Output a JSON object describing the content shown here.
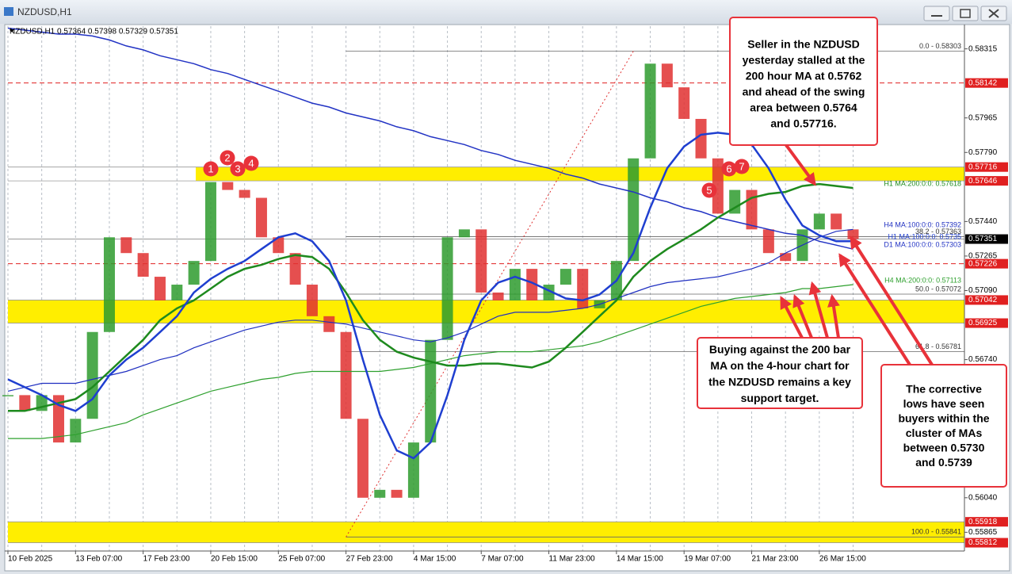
{
  "window_title": "NZDUSD,H1",
  "chart_data": {
    "type": "candlestick",
    "header": "NZDUSD,H1  0.57364 0.57398 0.57329 0.57351",
    "categories": [
      "10 Feb 2025",
      null,
      null,
      null,
      "13 Feb 07:00",
      null,
      null,
      null,
      "17 Feb 23:00",
      null,
      null,
      null,
      "20 Feb 15:00",
      null,
      null,
      null,
      "25 Feb 07:00",
      null,
      null,
      null,
      "27 Feb 23:00",
      null,
      null,
      null,
      "4 Mar 15:00",
      null,
      null,
      null,
      "7 Mar 07:00",
      null,
      null,
      null,
      "11 Mar 23:00",
      null,
      null,
      null,
      "14 Mar 15:00",
      null,
      null,
      null,
      "19 Mar 07:00",
      null,
      null,
      null,
      "21 Mar 23:00",
      null,
      null,
      null,
      "26 Mar 15:00",
      null,
      null
    ],
    "price": {
      "up_color": "#2e9b2e",
      "down_color": "#e03030",
      "values": [
        0.5656,
        0.5648,
        0.5656,
        0.5632,
        0.5644,
        0.5688,
        0.5736,
        0.5728,
        0.5716,
        0.5704,
        0.5712,
        0.5724,
        0.5764,
        0.576,
        0.5756,
        0.5736,
        0.5728,
        0.5712,
        0.5696,
        0.5688,
        0.5644,
        0.5604,
        0.5608,
        0.5604,
        0.5632,
        0.5684,
        0.5736,
        0.574,
        0.5708,
        0.5704,
        0.572,
        0.5704,
        0.5712,
        0.572,
        0.57,
        0.5704,
        0.5724,
        0.5776,
        0.5824,
        0.5812,
        0.5796,
        0.5776,
        0.5748,
        0.576,
        0.574,
        0.5728,
        0.5724,
        0.574,
        0.5748,
        0.574,
        0.57351
      ]
    },
    "series": [
      {
        "name": "D1 MA:100:0:0: 0.57303",
        "color": "#2233c4",
        "width": 1.5,
        "values": [
          0.5842,
          0.5841,
          0.584,
          0.5839,
          0.5839,
          0.5838,
          0.5836,
          0.5833,
          0.5831,
          0.5828,
          0.5826,
          0.5824,
          0.5821,
          0.5819,
          0.5816,
          0.5813,
          0.581,
          0.5807,
          0.5804,
          0.5802,
          0.5799,
          0.5797,
          0.5795,
          0.5792,
          0.579,
          0.5787,
          0.5785,
          0.5783,
          0.578,
          0.5778,
          0.5775,
          0.5773,
          0.5771,
          0.5768,
          0.5766,
          0.5763,
          0.5761,
          0.5759,
          0.5756,
          0.5754,
          0.5751,
          0.5749,
          0.5746,
          0.5744,
          0.5742,
          0.574,
          0.5738,
          0.5737,
          0.5734,
          0.5732,
          0.573
        ]
      },
      {
        "name": "H4 MA:200:0:0: 0.57113",
        "color": "#2ea02e",
        "width": 1.2,
        "values": [
          0.5634,
          0.5634,
          0.5634,
          0.5635,
          0.5636,
          0.5638,
          0.564,
          0.5642,
          0.5646,
          0.5649,
          0.5652,
          0.5655,
          0.5658,
          0.566,
          0.5662,
          0.5664,
          0.5665,
          0.5667,
          0.5668,
          0.5668,
          0.5668,
          0.5668,
          0.5668,
          0.5669,
          0.567,
          0.5672,
          0.5674,
          0.5676,
          0.5677,
          0.5678,
          0.5678,
          0.5678,
          0.5679,
          0.568,
          0.5681,
          0.5683,
          0.5686,
          0.5689,
          0.5692,
          0.5695,
          0.5698,
          0.5701,
          0.5703,
          0.5705,
          0.5706,
          0.5707,
          0.5708,
          0.571,
          0.571,
          0.5711,
          0.5712
        ]
      },
      {
        "name": "H4 MA:100:0:0: 0.57392",
        "color": "#1f2fc0",
        "width": 1.2,
        "values": [
          0.5658,
          0.566,
          0.5662,
          0.5662,
          0.5662,
          0.5664,
          0.5666,
          0.5668,
          0.5671,
          0.5674,
          0.5676,
          0.568,
          0.5683,
          0.5686,
          0.5689,
          0.5691,
          0.5693,
          0.5694,
          0.5694,
          0.5693,
          0.5692,
          0.569,
          0.5688,
          0.5686,
          0.5684,
          0.5683,
          0.5685,
          0.5688,
          0.5692,
          0.5696,
          0.5698,
          0.5698,
          0.5698,
          0.5699,
          0.57,
          0.5702,
          0.5705,
          0.5708,
          0.5711,
          0.5713,
          0.5714,
          0.5715,
          0.5716,
          0.5718,
          0.572,
          0.5723,
          0.5728,
          0.5732,
          0.5736,
          0.5739,
          0.574
        ]
      },
      {
        "name": "H1 MA:200:0:0: 0.57618",
        "color": "#1e8a1e",
        "width": 2.5,
        "values": [
          0.5648,
          0.5648,
          0.565,
          0.5652,
          0.5654,
          0.566,
          0.5668,
          0.5676,
          0.5684,
          0.5694,
          0.57,
          0.5704,
          0.571,
          0.5716,
          0.572,
          0.5722,
          0.5725,
          0.5727,
          0.5726,
          0.572,
          0.5708,
          0.5694,
          0.5684,
          0.5678,
          0.5675,
          0.5673,
          0.5671,
          0.5671,
          0.5672,
          0.5672,
          0.5671,
          0.567,
          0.5673,
          0.568,
          0.5688,
          0.5696,
          0.5704,
          0.5716,
          0.5724,
          0.573,
          0.5735,
          0.574,
          0.5746,
          0.5751,
          0.5756,
          0.5758,
          0.5759,
          0.5762,
          0.5763,
          0.5762,
          0.5761
        ]
      },
      {
        "name": "H1 MA:100:0:0: 0.5735",
        "color": "#1f3fd0",
        "width": 2.5,
        "values": [
          0.5664,
          0.566,
          0.5656,
          0.5651,
          0.5648,
          0.5654,
          0.5666,
          0.5674,
          0.568,
          0.5688,
          0.5696,
          0.5708,
          0.5715,
          0.572,
          0.5724,
          0.573,
          0.5736,
          0.5738,
          0.5734,
          0.5724,
          0.5704,
          0.5674,
          0.5646,
          0.5628,
          0.5624,
          0.5632,
          0.5656,
          0.5684,
          0.5704,
          0.5713,
          0.5716,
          0.5713,
          0.5709,
          0.5705,
          0.5704,
          0.5707,
          0.5714,
          0.5728,
          0.5751,
          0.5771,
          0.5782,
          0.5788,
          0.5789,
          0.5788,
          0.5783,
          0.5771,
          0.5755,
          0.5742,
          0.5737,
          0.5734,
          0.5734
        ]
      }
    ],
    "fib": [
      {
        "value": 0.58303,
        "label": "0.0 - 0.58303"
      },
      {
        "value": 0.57363,
        "label": "38.2 - 0.57363"
      },
      {
        "value": 0.57072,
        "label": "50.0 - 0.57072"
      },
      {
        "value": 0.56781,
        "label": "61.8 - 0.56781"
      },
      {
        "value": 0.55841,
        "label": "100.0 - 0.55841"
      }
    ],
    "levels": [
      0.58142,
      0.57226
    ],
    "zones": [
      [
        0.57716,
        0.57646
      ],
      [
        0.57042,
        0.56925
      ],
      [
        0.55918,
        0.55812
      ]
    ],
    "zone_color": "#ffee00",
    "level_color": "#e02020",
    "ylim": [
      0.5577,
      0.5843
    ],
    "yticks": [
      0.58315,
      0.57965,
      {
        "value": 0.5779,
        "label": "0.57790"
      },
      {
        "value": 0.5744,
        "label": "0.57440"
      },
      0.57265,
      {
        "value": 0.5709,
        "label": "0.57090"
      },
      {
        "value": 0.5674,
        "label": "0.56740"
      },
      {
        "value": 0.5604,
        "label": "0.56040"
      },
      0.55865
    ],
    "markers": [
      "1",
      "2",
      "3",
      "4",
      "5",
      "6",
      "7"
    ],
    "annotations": [
      [
        "Seller in the NZDUSD",
        "yesterday stalled at the",
        "200 hour MA at 0.5762",
        "and ahead of the swing",
        "area between 0.5764",
        "and 0.57716."
      ],
      [
        "Buying against the 200 bar",
        "MA on the 4-hour chart for",
        "the NZDUSD remains a key",
        "support target."
      ],
      [
        "The corrective",
        "lows have seen",
        "buyers within the",
        "cluster of MAs",
        "between 0.5730",
        "and 0.5739"
      ]
    ]
  }
}
